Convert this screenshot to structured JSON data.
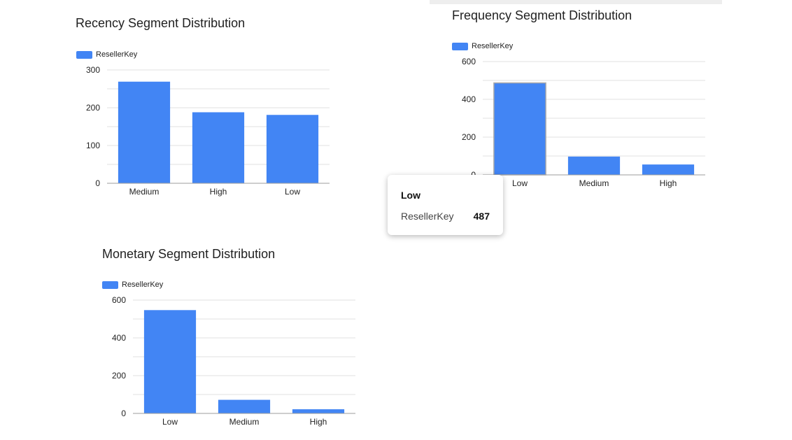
{
  "colors": {
    "series": "#4285f4",
    "grid": "#e0e0e0",
    "axis": "#9e9e9e"
  },
  "chart_data": [
    {
      "id": "recency",
      "type": "bar",
      "title": "Recency Segment Distribution",
      "legend": "ResellerKey",
      "legend_position": "top-left",
      "categories": [
        "Medium",
        "High",
        "Low"
      ],
      "series": [
        {
          "name": "ResellerKey",
          "values": [
            269,
            188,
            181
          ]
        }
      ],
      "ylim": [
        0,
        300
      ],
      "yticks": [
        "300",
        "200",
        "100",
        "0"
      ],
      "grid": true
    },
    {
      "id": "frequency",
      "type": "bar",
      "title": "Frequency Segment Distribution",
      "legend": "ResellerKey",
      "legend_position": "top-left",
      "categories": [
        "Low",
        "Medium",
        "High"
      ],
      "series": [
        {
          "name": "ResellerKey",
          "values": [
            487,
            97,
            55
          ]
        }
      ],
      "ylim": [
        0,
        600
      ],
      "yticks": [
        "600",
        "400",
        "200",
        "0"
      ],
      "grid": true,
      "highlight_index": 0
    },
    {
      "id": "monetary",
      "type": "bar",
      "title": "Monetary Segment Distribution",
      "legend": "ResellerKey",
      "legend_position": "top-left",
      "categories": [
        "Low",
        "Medium",
        "High"
      ],
      "series": [
        {
          "name": "ResellerKey",
          "values": [
            547,
            72,
            22
          ]
        }
      ],
      "ylim": [
        0,
        600
      ],
      "yticks": [
        "600",
        "400",
        "200",
        "0"
      ],
      "grid": true
    }
  ],
  "tooltip": {
    "category": "Low",
    "series_label": "ResellerKey",
    "value": "487"
  }
}
